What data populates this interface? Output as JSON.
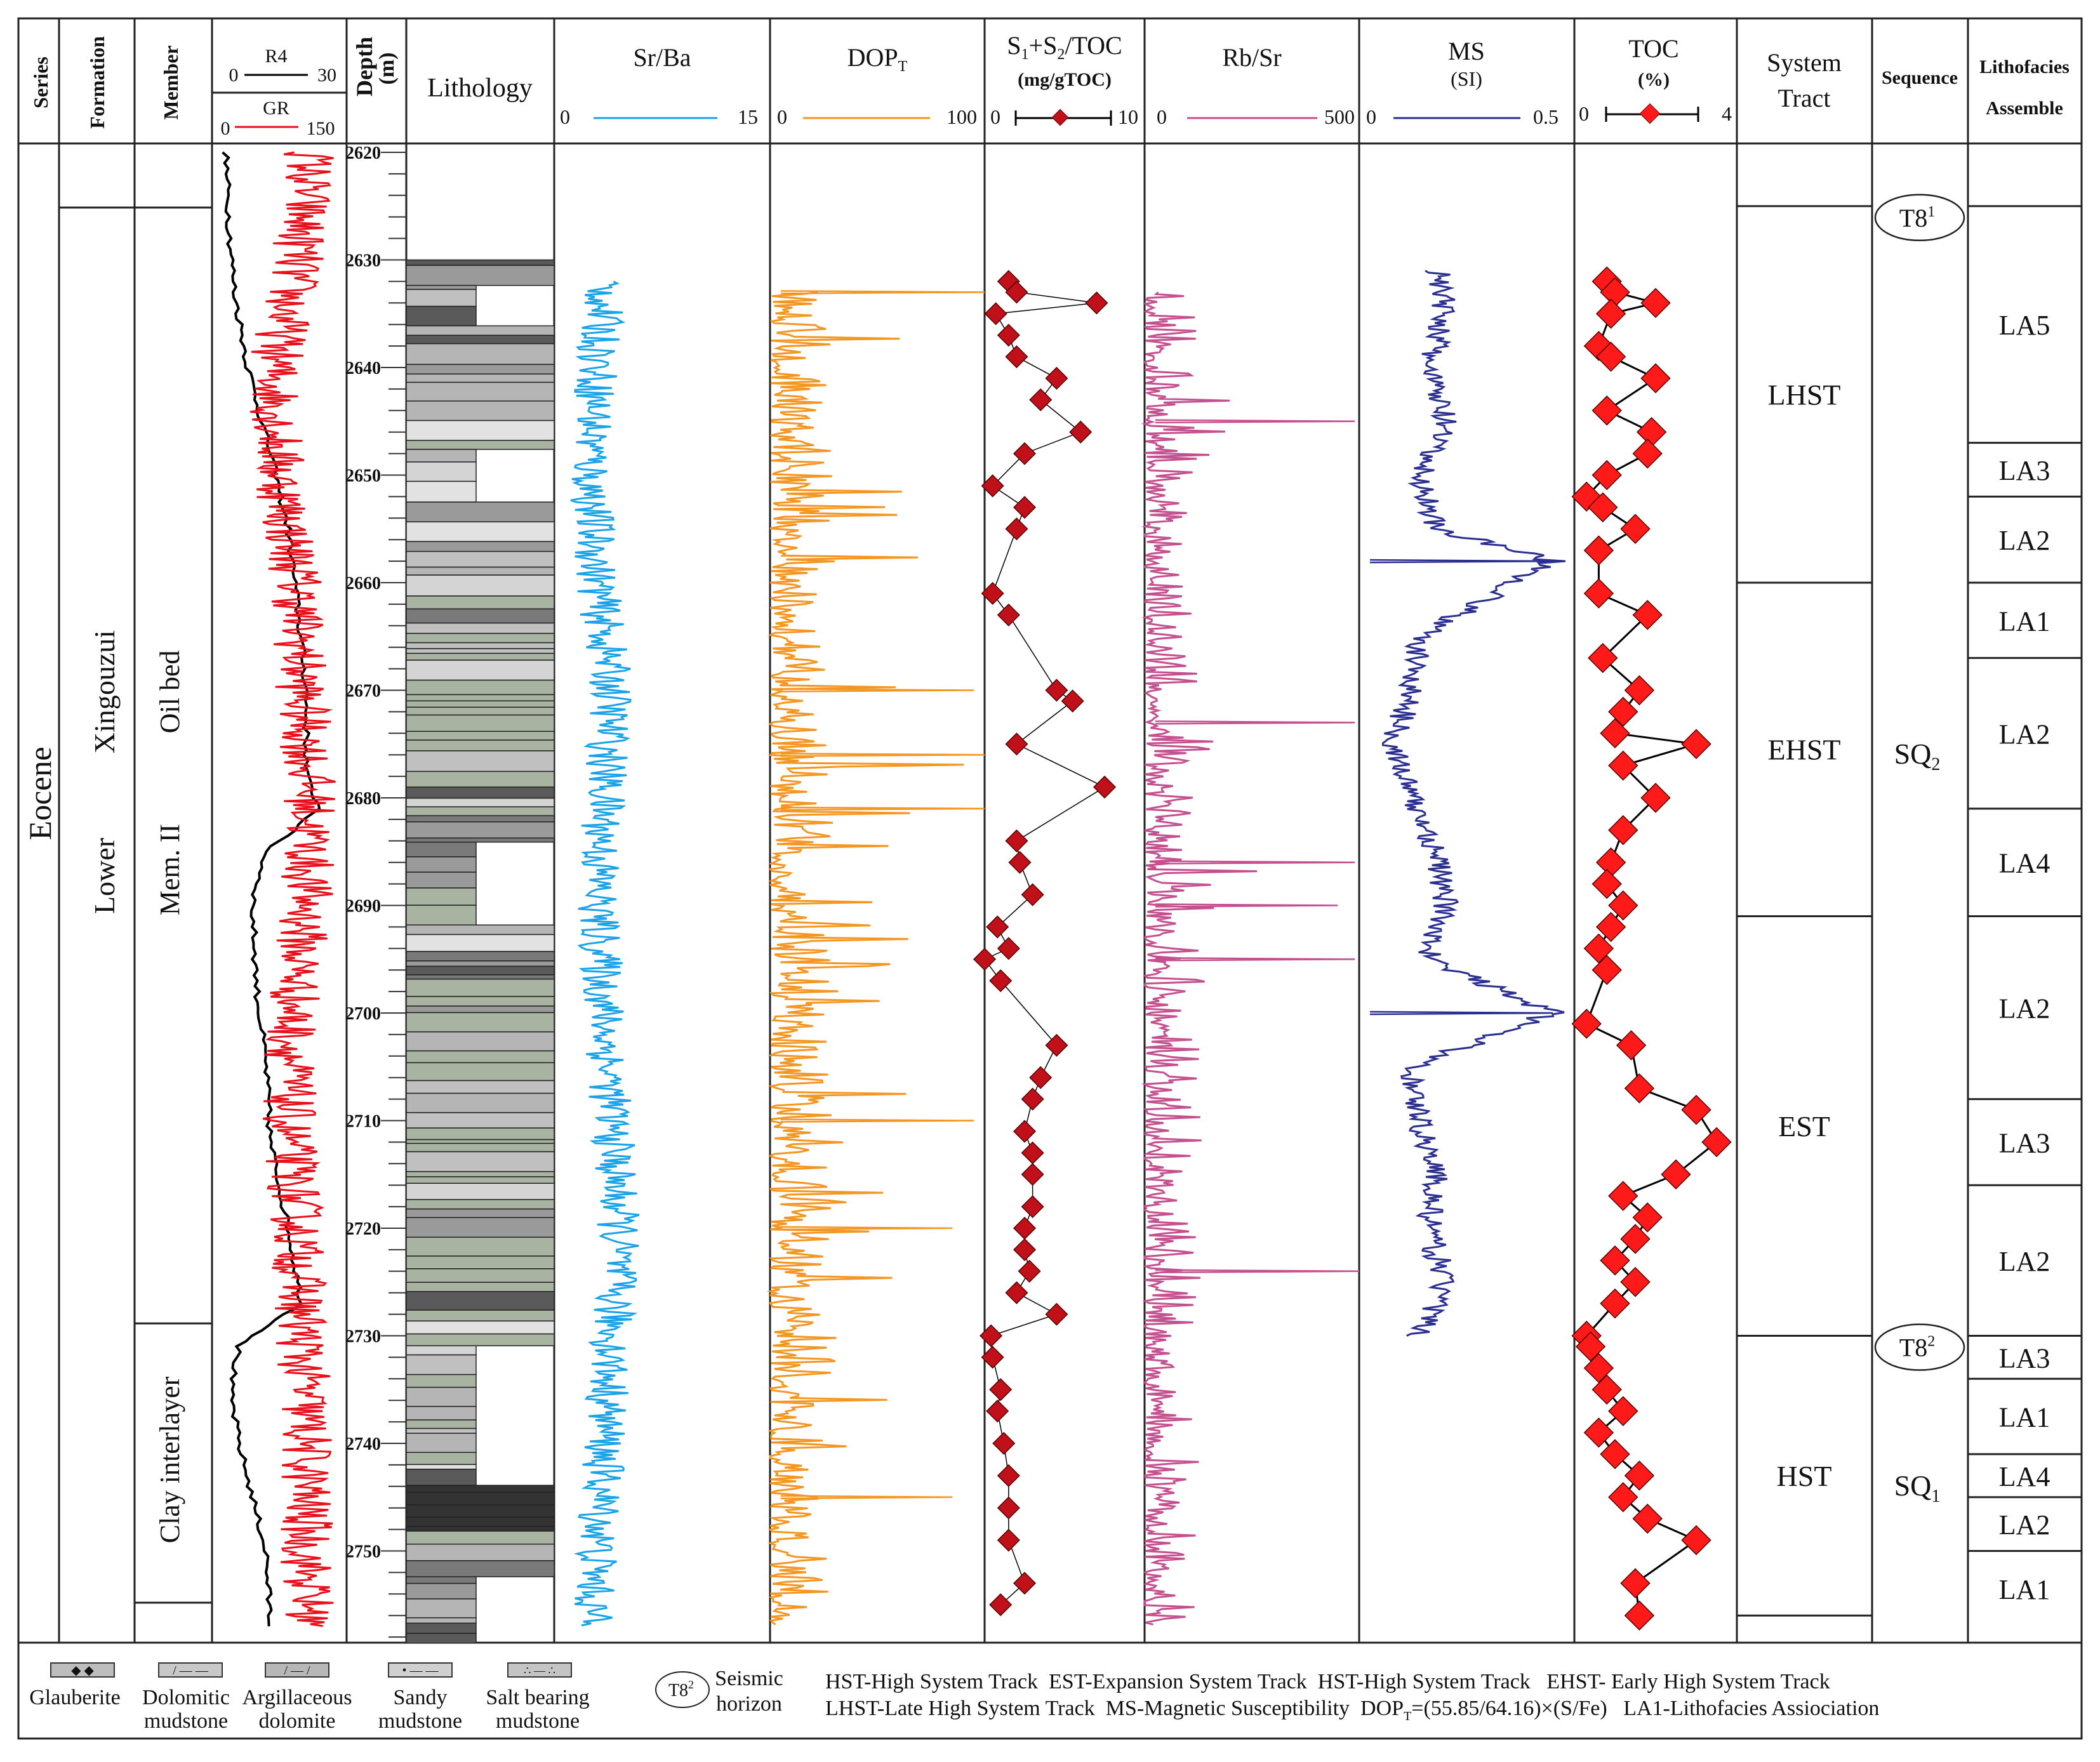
{
  "headers": {
    "series": "Series",
    "formation": "Formation",
    "member": "Member",
    "r4": "R4",
    "r4_min": "0",
    "r4_max": "30",
    "gr": "GR",
    "gr_min": "0",
    "gr_max": "150",
    "depth": "Depth",
    "depth_unit": "(m)",
    "lithology": "Lithology",
    "srba": "Sr/Ba",
    "srba_min": "0",
    "srba_max": "15",
    "dopt": "DOP",
    "dopt_sub": "T",
    "dopt_min": "0",
    "dopt_max": "100",
    "s1s2": "S",
    "s1s2_full": "S1+S2/TOC",
    "s1s2_unit": "(mg/gTOC)",
    "s1s2_min": "0",
    "s1s2_max": "10",
    "rbsr": "Rb/Sr",
    "rbsr_min": "0",
    "rbsr_max": "500",
    "ms": "MS",
    "ms_unit": "(SI)",
    "ms_min": "0",
    "ms_max": "0.5",
    "toc": "TOC",
    "toc_unit": "(%)",
    "toc_min": "0",
    "toc_max": "4",
    "system_tract": "System",
    "system_tract2": "Tract",
    "sequence": "Sequence",
    "lithofacies": "Lithofacies",
    "lithofacies2": "Assemble"
  },
  "stratigraphy": {
    "series": "Eocene",
    "formation_prefix": "Lower",
    "formation": "Xingouzui",
    "member_upper": "Oil bed",
    "member_upper2": "Mem. II",
    "member_lower": "Clay interlayer"
  },
  "depth_ticks": [
    2620,
    2630,
    2640,
    2650,
    2660,
    2670,
    2680,
    2690,
    2700,
    2710,
    2720,
    2730,
    2740,
    2750
  ],
  "system_tracts": [
    {
      "label": "LHST",
      "top": 2625,
      "bottom": 2660
    },
    {
      "label": "EHST",
      "top": 2660,
      "bottom": 2691
    },
    {
      "label": "EST",
      "top": 2691,
      "bottom": 2730
    },
    {
      "label": "HST",
      "top": 2730,
      "bottom": 2756
    }
  ],
  "sequences": [
    {
      "label": "SQ",
      "sub": "2",
      "y": 2676
    },
    {
      "label": "SQ",
      "sub": "1",
      "y": 2744
    }
  ],
  "seismic_horizons": [
    {
      "label": "T8",
      "sup": "1",
      "depth": 2625
    },
    {
      "label": "T8",
      "sup": "2",
      "depth": 2730
    }
  ],
  "lithofacies": [
    {
      "label": "LA5",
      "top": 2625,
      "bottom": 2647
    },
    {
      "label": "LA3",
      "top": 2647,
      "bottom": 2652
    },
    {
      "label": "LA2",
      "top": 2652,
      "bottom": 2660
    },
    {
      "label": "LA1",
      "top": 2660,
      "bottom": 2667
    },
    {
      "label": "LA2",
      "top": 2667,
      "bottom": 2681
    },
    {
      "label": "LA4",
      "top": 2681,
      "bottom": 2691
    },
    {
      "label": "LA2",
      "top": 2691,
      "bottom": 2708
    },
    {
      "label": "LA3",
      "top": 2708,
      "bottom": 2716
    },
    {
      "label": "LA2",
      "top": 2716,
      "bottom": 2730
    },
    {
      "label": "LA3",
      "top": 2730,
      "bottom": 2734
    },
    {
      "label": "LA1",
      "top": 2734,
      "bottom": 2741
    },
    {
      "label": "LA4",
      "top": 2741,
      "bottom": 2745
    },
    {
      "label": "LA2",
      "top": 2745,
      "bottom": 2750
    },
    {
      "label": "LA1",
      "top": 2750,
      "bottom": 2757
    }
  ],
  "chart_data": {
    "type": "line",
    "y_axis": {
      "label": "Depth (m)",
      "range": [
        2620,
        2759
      ],
      "ticks": [
        2620,
        2630,
        2640,
        2650,
        2660,
        2670,
        2680,
        2690,
        2700,
        2710,
        2720,
        2730,
        2740,
        2750
      ]
    },
    "tracks": [
      {
        "name": "R4",
        "color": "#000000",
        "range": [
          0,
          30
        ],
        "depth": [
          2620,
          2628,
          2633,
          2640,
          2648,
          2655,
          2662,
          2670,
          2678,
          2681,
          2685,
          2690,
          2698,
          2705,
          2712,
          2720,
          2727,
          2731,
          2735,
          2740,
          2745,
          2750,
          2757
        ],
        "values": [
          3,
          4,
          5,
          8,
          13,
          17,
          19,
          21,
          21,
          24,
          12,
          9,
          10,
          12,
          13,
          17,
          20,
          6,
          4,
          6,
          9,
          12,
          13
        ]
      },
      {
        "name": "GR",
        "color": "#e8101a",
        "range": [
          0,
          150
        ],
        "depth": [
          2620,
          2630,
          2640,
          2650,
          2660,
          2670,
          2680,
          2690,
          2700,
          2710,
          2720,
          2730,
          2740,
          2750,
          2757
        ],
        "values": [
          110,
          95,
          70,
          75,
          95,
          100,
          110,
          105,
          90,
          85,
          95,
          100,
          105,
          105,
          110
        ]
      },
      {
        "name": "Sr/Ba",
        "color": "#1aa3e6",
        "range": [
          0,
          15
        ],
        "depth": [
          2632,
          2640,
          2650,
          2660,
          2670,
          2680,
          2690,
          2700,
          2710,
          2720,
          2730,
          2740,
          2750,
          2757
        ],
        "values": [
          3.5,
          3.0,
          2.5,
          3.0,
          4.0,
          3.5,
          3.0,
          3.5,
          4.0,
          4.5,
          4.0,
          3.5,
          3.0,
          2.5
        ]
      },
      {
        "name": "DOPT",
        "color": "#f39622",
        "range": [
          0,
          100
        ],
        "depth": [
          2633,
          2640,
          2650,
          2660,
          2670,
          2676,
          2681,
          2690,
          2700,
          2710,
          2720,
          2730,
          2745,
          2757
        ],
        "values": [
          100,
          60,
          30,
          40,
          95,
          100,
          100,
          15,
          5,
          95,
          85,
          40,
          85,
          10
        ]
      },
      {
        "name": "S1+S2/TOC",
        "color": "#000000",
        "marker_color": "#c0101a",
        "range": [
          0,
          10
        ],
        "depth": [
          2632,
          2633,
          2634,
          2635,
          2637,
          2639,
          2641,
          2643,
          2646,
          2648,
          2651,
          2653,
          2655,
          2661,
          2663,
          2670,
          2671,
          2675,
          2679,
          2684,
          2686,
          2689,
          2692,
          2694,
          2695,
          2697,
          2703,
          2706,
          2708,
          2711,
          2713,
          2715,
          2718,
          2720,
          2722,
          2724,
          2726,
          2728,
          2730,
          2732,
          2735,
          2737,
          2740,
          2743,
          2746,
          2749,
          2753,
          2755
        ],
        "values": [
          1.5,
          2.0,
          7.0,
          0.7,
          1.5,
          2.0,
          4.5,
          3.5,
          6.0,
          2.5,
          0.5,
          2.5,
          2.0,
          0.5,
          1.5,
          4.5,
          5.5,
          2.0,
          7.5,
          2.0,
          2.2,
          3.0,
          0.8,
          1.5,
          0.0,
          1.0,
          4.5,
          3.5,
          3.0,
          2.5,
          3.0,
          3.0,
          3.0,
          2.5,
          2.5,
          2.8,
          2.0,
          4.5,
          0.4,
          0.5,
          1.0,
          0.8,
          1.2,
          1.5,
          1.5,
          1.5,
          2.5,
          1.0
        ]
      },
      {
        "name": "Rb/Sr",
        "color": "#c4508f",
        "range": [
          0,
          500
        ],
        "depth": [
          2633,
          2640,
          2645,
          2650,
          2660,
          2673,
          2680,
          2686,
          2690,
          2695,
          2700,
          2710,
          2720,
          2724,
          2730,
          2740,
          2750,
          2757
        ],
        "values": [
          90,
          60,
          490,
          70,
          60,
          490,
          80,
          490,
          450,
          490,
          60,
          70,
          120,
          500,
          50,
          40,
          30,
          20
        ]
      },
      {
        "name": "MS",
        "color": "#2b2f8f",
        "range": [
          0,
          0.5
        ],
        "depth": [
          2631,
          2635,
          2640,
          2645,
          2650,
          2655,
          2658,
          2665,
          2670,
          2675,
          2680,
          2685,
          2690,
          2695,
          2700,
          2705,
          2710,
          2715,
          2720,
          2725,
          2730
        ],
        "values": [
          0.18,
          0.2,
          0.16,
          0.2,
          0.14,
          0.18,
          0.45,
          0.14,
          0.12,
          0.08,
          0.12,
          0.18,
          0.2,
          0.16,
          0.45,
          0.12,
          0.14,
          0.18,
          0.16,
          0.2,
          0.14
        ]
      },
      {
        "name": "TOC",
        "color": "#000000",
        "marker_color": "#ff1a1a",
        "range": [
          0,
          4
        ],
        "depth": [
          2632,
          2633,
          2634,
          2635,
          2638,
          2639,
          2641,
          2644,
          2646,
          2648,
          2650,
          2652,
          2653,
          2655,
          2657,
          2661,
          2663,
          2667,
          2670,
          2672,
          2674,
          2675,
          2677,
          2680,
          2683,
          2686,
          2688,
          2690,
          2692,
          2694,
          2696,
          2701,
          2703,
          2707,
          2709,
          2712,
          2715,
          2717,
          2719,
          2721,
          2723,
          2725,
          2727,
          2730,
          2731,
          2733,
          2735,
          2737,
          2739,
          2741,
          2743,
          2745,
          2747,
          2749,
          2753,
          2756
        ],
        "values": [
          0.8,
          1.0,
          2.0,
          0.9,
          0.6,
          0.9,
          2.0,
          0.8,
          1.9,
          1.8,
          0.8,
          0.3,
          0.7,
          1.5,
          0.6,
          0.6,
          1.8,
          0.7,
          1.6,
          1.2,
          1.0,
          3.0,
          1.2,
          2.0,
          1.2,
          0.9,
          0.8,
          1.2,
          0.9,
          0.6,
          0.8,
          0.3,
          1.4,
          1.6,
          3.0,
          3.5,
          2.5,
          1.2,
          1.8,
          1.5,
          1.0,
          1.5,
          1.0,
          0.3,
          0.4,
          0.6,
          0.8,
          1.2,
          0.6,
          1.0,
          1.6,
          1.2,
          1.8,
          3.0,
          1.5,
          1.6
        ]
      }
    ]
  },
  "legend": {
    "glauberite": "Glauberite",
    "dolomitic_mudstone_1": "Dolomitic",
    "dolomitic_mudstone_2": "mudstone",
    "argillaceous_dolomite_1": "Argillaceous",
    "argillaceous_dolomite_2": "dolomite",
    "sandy_mudstone_1": "Sandy",
    "sandy_mudstone_2": "mudstone",
    "salt_bearing_1": "Salt bearing",
    "salt_bearing_2": "mudstone",
    "seismic_label": "T8",
    "seismic_sup": "2",
    "seismic_1": "Seismic",
    "seismic_2": "horizon",
    "abbr_line1": "HST-High System Track  EST-Expansion System Track  HST-High System Track   EHST- Early High System Track",
    "abbr_line2a": "LHST-Late High System Track  MS-Magnetic Susceptibility  DOP",
    "abbr_line2b": "=(55.85/64.16)×(S/Fe)   LA1-Lithofacies Assiociation"
  }
}
